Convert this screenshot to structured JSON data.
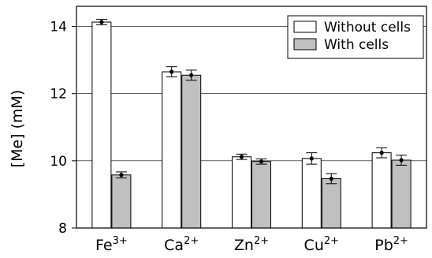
{
  "chart_data": {
    "type": "bar",
    "ylabel": "[Me] (mM)",
    "ylim": [
      8,
      14.6
    ],
    "yticks": [
      "8",
      "10",
      "12",
      "14"
    ],
    "grid": "horizontal",
    "legend_position": "top-right",
    "categories": [
      {
        "base": "Fe",
        "sup": "3+"
      },
      {
        "base": "Ca",
        "sup": "2+"
      },
      {
        "base": "Zn",
        "sup": "2+"
      },
      {
        "base": "Cu",
        "sup": "2+"
      },
      {
        "base": "Pb",
        "sup": "2+"
      }
    ],
    "series": [
      {
        "name": "Without cells",
        "color": "#ffffff",
        "values": [
          14.13,
          12.65,
          10.12,
          10.07,
          10.24
        ],
        "errors": [
          0.08,
          0.15,
          0.08,
          0.17,
          0.15
        ]
      },
      {
        "name": "With cells",
        "color": "#c0c0c0",
        "values": [
          9.58,
          12.55,
          9.98,
          9.47,
          10.02
        ],
        "errors": [
          0.09,
          0.15,
          0.08,
          0.15,
          0.15
        ]
      }
    ]
  }
}
